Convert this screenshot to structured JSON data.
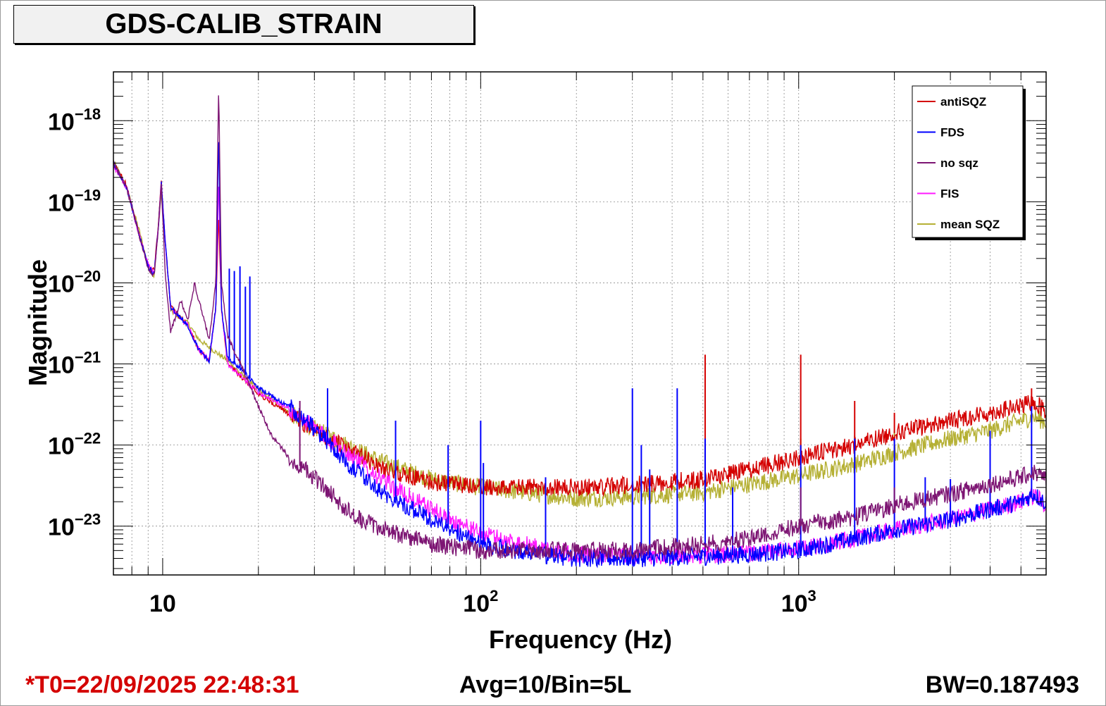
{
  "footer": {
    "t0": "*T0=22/09/2025 22:48:31",
    "avg": "Avg=10/Bin=5L",
    "bw": "BW=0.187493",
    "t0_color": "#d40000"
  },
  "chart_data": {
    "type": "line",
    "title": "GDS-CALIB_STRAIN",
    "xlabel": "Frequency (Hz)",
    "ylabel": "Magnitude",
    "xscale": "log",
    "yscale": "log",
    "xlim": [
      7,
      6000
    ],
    "ylim": [
      2.5e-24,
      4e-18
    ],
    "x_ticks": [
      {
        "value": 10,
        "base": "10",
        "exp": ""
      },
      {
        "value": 100,
        "base": "10",
        "exp": "2"
      },
      {
        "value": 1000,
        "base": "10",
        "exp": "3"
      }
    ],
    "y_ticks": [
      {
        "value": 1e-23,
        "base": "10",
        "exp": "−23"
      },
      {
        "value": 1e-22,
        "base": "10",
        "exp": "−22"
      },
      {
        "value": 1e-21,
        "base": "10",
        "exp": "−21"
      },
      {
        "value": 1e-20,
        "base": "10",
        "exp": "−20"
      },
      {
        "value": 1e-19,
        "base": "10",
        "exp": "−19"
      },
      {
        "value": 1e-18,
        "base": "10",
        "exp": "−18"
      }
    ],
    "grid": true,
    "legend_position": "top-right",
    "series": [
      {
        "name": "mean SQZ",
        "color": "#b5b034",
        "points": [
          [
            7,
            3.2e-19
          ],
          [
            7.7,
            1.5e-19
          ],
          [
            8.5,
            4e-20
          ],
          [
            9,
            1.6e-20
          ],
          [
            9.4,
            1.2e-20
          ],
          [
            9.7,
            5e-20
          ],
          [
            9.9,
            1.3e-19
          ],
          [
            10.2,
            3e-20
          ],
          [
            10.6,
            4.5e-21
          ],
          [
            12,
            3.2e-21
          ],
          [
            13,
            2e-21
          ],
          [
            14,
            1.6e-21
          ],
          [
            16,
            1.1e-21
          ],
          [
            18,
            7e-22
          ],
          [
            20,
            4.8e-22
          ],
          [
            25,
            2.5e-22
          ],
          [
            30,
            1.6e-22
          ],
          [
            40,
            9e-23
          ],
          [
            50,
            6e-23
          ],
          [
            70,
            3.8e-23
          ],
          [
            100,
            3e-23
          ],
          [
            150,
            2.5e-23
          ],
          [
            200,
            2.2e-23
          ],
          [
            300,
            2.3e-23
          ],
          [
            500,
            2.6e-23
          ],
          [
            700,
            3.3e-23
          ],
          [
            1000,
            4.2e-23
          ],
          [
            1500,
            5.8e-23
          ],
          [
            2000,
            8e-23
          ],
          [
            3000,
            1.2e-22
          ],
          [
            4000,
            1.5e-22
          ],
          [
            5000,
            2e-22
          ],
          [
            5500,
            2.2e-22
          ],
          [
            6000,
            1.9e-22
          ]
        ],
        "lines": [
          [
            508,
            8e-23
          ],
          [
            1015,
            1.2e-22
          ],
          [
            1500,
            1.3e-22
          ],
          [
            2000,
            1.5e-22
          ]
        ]
      },
      {
        "name": "antiSQZ",
        "color": "#d40000",
        "points": [
          [
            7,
            3e-19
          ],
          [
            7.7,
            1.6e-19
          ],
          [
            8.5,
            3.5e-20
          ],
          [
            9,
            1.6e-20
          ],
          [
            9.4,
            1.4e-20
          ],
          [
            9.7,
            5.5e-20
          ],
          [
            9.9,
            1.8e-19
          ],
          [
            10.2,
            3e-20
          ],
          [
            10.6,
            5e-21
          ],
          [
            12,
            3e-21
          ],
          [
            13,
            1.5e-21
          ],
          [
            14,
            1.1e-21
          ],
          [
            14.7,
            5e-21
          ],
          [
            15,
            7e-20
          ],
          [
            15.3,
            5e-21
          ],
          [
            16,
            1e-21
          ],
          [
            18,
            6.5e-22
          ],
          [
            20,
            4.3e-22
          ],
          [
            25,
            2.4e-22
          ],
          [
            30,
            1.5e-22
          ],
          [
            40,
            8e-23
          ],
          [
            50,
            5e-23
          ],
          [
            70,
            3.5e-23
          ],
          [
            100,
            3e-23
          ],
          [
            150,
            3e-23
          ],
          [
            200,
            3e-23
          ],
          [
            300,
            3.2e-23
          ],
          [
            500,
            3.8e-23
          ],
          [
            700,
            5e-23
          ],
          [
            1000,
            7e-23
          ],
          [
            1500,
            1e-22
          ],
          [
            2000,
            1.4e-22
          ],
          [
            3000,
            2e-22
          ],
          [
            4000,
            2.5e-22
          ],
          [
            5000,
            3e-22
          ],
          [
            5500,
            3.4e-22
          ],
          [
            6000,
            2.6e-22
          ]
        ],
        "lines": [
          [
            508,
            1.3e-21
          ],
          [
            1015,
            1.3e-21
          ],
          [
            1500,
            3.5e-22
          ],
          [
            2000,
            2.5e-22
          ],
          [
            5400,
            5e-22
          ]
        ]
      },
      {
        "name": "FIS",
        "color": "#ff1aff",
        "points": [
          [
            7,
            2.8e-19
          ],
          [
            7.7,
            1.5e-19
          ],
          [
            8.5,
            3.5e-20
          ],
          [
            9,
            1.7e-20
          ],
          [
            9.4,
            1.3e-20
          ],
          [
            9.7,
            5e-20
          ],
          [
            9.9,
            1.7e-19
          ],
          [
            10.2,
            3e-20
          ],
          [
            10.6,
            4.8e-21
          ],
          [
            12,
            3e-21
          ],
          [
            13,
            1.5e-21
          ],
          [
            14,
            1.1e-21
          ],
          [
            14.7,
            5e-21
          ],
          [
            15,
            2e-19
          ],
          [
            15.3,
            5e-21
          ],
          [
            16,
            1e-21
          ],
          [
            18,
            6.5e-22
          ],
          [
            20,
            4.5e-22
          ],
          [
            25,
            2.8e-22
          ],
          [
            30,
            1.6e-22
          ],
          [
            40,
            7e-23
          ],
          [
            50,
            3.5e-23
          ],
          [
            70,
            1.6e-23
          ],
          [
            100,
            8e-24
          ],
          [
            150,
            5.5e-24
          ],
          [
            200,
            4.5e-24
          ],
          [
            300,
            4.2e-24
          ],
          [
            500,
            4.4e-24
          ],
          [
            700,
            4.6e-24
          ],
          [
            1000,
            5.2e-24
          ],
          [
            1500,
            7e-24
          ],
          [
            2000,
            9e-24
          ],
          [
            3000,
            1.2e-23
          ],
          [
            4000,
            1.6e-23
          ],
          [
            5000,
            2e-23
          ],
          [
            5500,
            2.4e-23
          ],
          [
            6000,
            1.8e-23
          ]
        ],
        "lines": []
      },
      {
        "name": "FDS",
        "color": "#0000ff",
        "points": [
          [
            7,
            3e-19
          ],
          [
            7.7,
            1.5e-19
          ],
          [
            8.5,
            3.5e-20
          ],
          [
            9,
            1.6e-20
          ],
          [
            9.4,
            1.3e-20
          ],
          [
            9.7,
            5e-20
          ],
          [
            9.9,
            1.7e-19
          ],
          [
            10.2,
            3e-20
          ],
          [
            10.6,
            5e-21
          ],
          [
            12,
            3e-21
          ],
          [
            13,
            1.5e-21
          ],
          [
            14,
            1.1e-21
          ],
          [
            14.7,
            5e-21
          ],
          [
            15,
            7e-19
          ],
          [
            15.3,
            5e-21
          ],
          [
            16,
            1.2e-21
          ],
          [
            17,
            1e-21
          ],
          [
            18,
            8e-22
          ],
          [
            20,
            5e-22
          ],
          [
            25,
            3e-22
          ],
          [
            30,
            1.6e-22
          ],
          [
            40,
            5e-23
          ],
          [
            50,
            2.5e-23
          ],
          [
            70,
            1.2e-23
          ],
          [
            100,
            6e-24
          ],
          [
            150,
            4.5e-24
          ],
          [
            200,
            4e-24
          ],
          [
            300,
            4e-24
          ],
          [
            500,
            4.2e-24
          ],
          [
            700,
            4.5e-24
          ],
          [
            1000,
            5e-24
          ],
          [
            1500,
            7e-24
          ],
          [
            2000,
            9e-24
          ],
          [
            3000,
            1.2e-23
          ],
          [
            4000,
            1.6e-23
          ],
          [
            5000,
            2e-23
          ],
          [
            5500,
            2.5e-23
          ],
          [
            6000,
            1.9e-23
          ]
        ],
        "lines": [
          [
            16.2,
            1.5e-20
          ],
          [
            16.8,
            1.4e-20
          ],
          [
            17.5,
            1.6e-20
          ],
          [
            18.2,
            9e-21
          ],
          [
            18.8,
            1.2e-20
          ],
          [
            33,
            5e-22
          ],
          [
            54,
            2e-22
          ],
          [
            79,
            1e-22
          ],
          [
            100,
            2e-22
          ],
          [
            102,
            6e-23
          ],
          [
            160,
            4e-23
          ],
          [
            300,
            5e-22
          ],
          [
            320,
            1e-22
          ],
          [
            340,
            5e-23
          ],
          [
            415,
            5e-22
          ],
          [
            508,
            1.2e-22
          ],
          [
            620,
            3e-23
          ],
          [
            1015,
            1e-22
          ],
          [
            1500,
            1.2e-22
          ],
          [
            2000,
            1.2e-22
          ],
          [
            2500,
            4e-23
          ],
          [
            3000,
            3.8e-23
          ],
          [
            4000,
            1.5e-22
          ],
          [
            5400,
            3e-22
          ]
        ]
      },
      {
        "name": "no sqz",
        "color": "#7d1573",
        "points": [
          [
            7,
            3e-19
          ],
          [
            7.7,
            1.5e-19
          ],
          [
            8.5,
            3.5e-20
          ],
          [
            9,
            1.5e-20
          ],
          [
            9.4,
            1.2e-20
          ],
          [
            9.7,
            5e-20
          ],
          [
            9.9,
            1.7e-19
          ],
          [
            10.2,
            1.2e-20
          ],
          [
            10.6,
            2.5e-21
          ],
          [
            11.4,
            6e-21
          ],
          [
            12,
            3.5e-21
          ],
          [
            12.6,
            1e-20
          ],
          [
            13,
            6e-21
          ],
          [
            14,
            2e-21
          ],
          [
            14.7,
            1e-20
          ],
          [
            15,
            3e-18
          ],
          [
            15.3,
            1e-20
          ],
          [
            16,
            2.2e-21
          ],
          [
            18,
            8e-22
          ],
          [
            20,
            3e-22
          ],
          [
            22,
            1.3e-22
          ],
          [
            25,
            7e-23
          ],
          [
            30,
            4e-23
          ],
          [
            35,
            2.2e-23
          ],
          [
            40,
            1.3e-23
          ],
          [
            50,
            9e-24
          ],
          [
            70,
            6e-24
          ],
          [
            100,
            5e-24
          ],
          [
            150,
            5e-24
          ],
          [
            200,
            5e-24
          ],
          [
            300,
            5e-24
          ],
          [
            500,
            6e-24
          ],
          [
            700,
            7e-24
          ],
          [
            1000,
            1e-23
          ],
          [
            1500,
            1.3e-23
          ],
          [
            2000,
            1.8e-23
          ],
          [
            3000,
            2.5e-23
          ],
          [
            4000,
            3.3e-23
          ],
          [
            5000,
            4e-23
          ],
          [
            5500,
            4.6e-23
          ],
          [
            6000,
            3.8e-23
          ]
        ],
        "lines": [
          [
            27,
            3.5e-22
          ],
          [
            1015,
            3e-23
          ],
          [
            2000,
            3e-23
          ]
        ]
      }
    ]
  }
}
